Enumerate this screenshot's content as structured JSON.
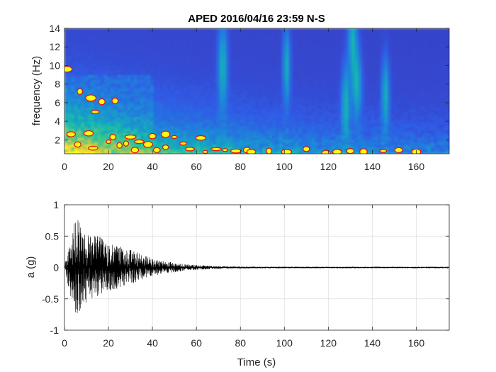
{
  "chart_data": [
    {
      "type": "heatmap",
      "title": "APED 2016/04/16 23:59 N-S",
      "xlabel": "",
      "ylabel": "frequency (Hz)",
      "xlim": [
        0,
        175
      ],
      "ylim": [
        0.5,
        14
      ],
      "xticks": [
        0,
        20,
        40,
        60,
        80,
        100,
        120,
        140,
        160
      ],
      "yticks": [
        2,
        4,
        6,
        8,
        10,
        12,
        14
      ],
      "colormap": [
        "#3e26a8",
        "#2f5ce6",
        "#1a8ed6",
        "#18b6b0",
        "#3ec98a",
        "#a0c84a",
        "#f5d12b",
        "#f9fb0e"
      ],
      "contour_color": "#e01010",
      "hot_spots": [
        {
          "t": 1,
          "f": 9.6
        },
        {
          "t": 3,
          "f": 2.6
        },
        {
          "t": 6,
          "f": 1.5
        },
        {
          "t": 7,
          "f": 7.2
        },
        {
          "t": 11,
          "f": 2.7
        },
        {
          "t": 12,
          "f": 6.5
        },
        {
          "t": 13,
          "f": 1.1
        },
        {
          "t": 14,
          "f": 5.0
        },
        {
          "t": 17,
          "f": 6.1
        },
        {
          "t": 20,
          "f": 1.8
        },
        {
          "t": 22,
          "f": 2.3
        },
        {
          "t": 23,
          "f": 6.2
        },
        {
          "t": 25,
          "f": 1.4
        },
        {
          "t": 28,
          "f": 1.6
        },
        {
          "t": 30,
          "f": 2.3
        },
        {
          "t": 32,
          "f": 0.9
        },
        {
          "t": 34,
          "f": 1.8
        },
        {
          "t": 38,
          "f": 1.5
        },
        {
          "t": 40,
          "f": 2.4
        },
        {
          "t": 42,
          "f": 0.9
        },
        {
          "t": 46,
          "f": 2.6
        },
        {
          "t": 46,
          "f": 1.2
        },
        {
          "t": 50,
          "f": 2.3
        },
        {
          "t": 54,
          "f": 1.6
        },
        {
          "t": 57,
          "f": 1.0
        },
        {
          "t": 62,
          "f": 2.2
        },
        {
          "t": 64,
          "f": 0.7
        },
        {
          "t": 69,
          "f": 1.0
        },
        {
          "t": 73,
          "f": 0.9
        },
        {
          "t": 78,
          "f": 0.8
        },
        {
          "t": 83,
          "f": 0.9
        },
        {
          "t": 85,
          "f": 0.7
        },
        {
          "t": 93,
          "f": 0.8
        },
        {
          "t": 101,
          "f": 0.7
        },
        {
          "t": 110,
          "f": 1.0
        },
        {
          "t": 119,
          "f": 0.6
        },
        {
          "t": 124,
          "f": 0.7
        },
        {
          "t": 130,
          "f": 0.8
        },
        {
          "t": 136,
          "f": 0.7
        },
        {
          "t": 145,
          "f": 0.8
        },
        {
          "t": 152,
          "f": 0.9
        },
        {
          "t": 160,
          "f": 0.7
        }
      ]
    },
    {
      "type": "line",
      "title": "",
      "xlabel": "Time (s)",
      "ylabel": "a (g)",
      "xlim": [
        0,
        175
      ],
      "ylim": [
        -1,
        1
      ],
      "xticks": [
        0,
        20,
        40,
        60,
        80,
        100,
        120,
        140,
        160
      ],
      "yticks": [
        -1,
        -0.5,
        0,
        0.5,
        1
      ],
      "grid": true,
      "line_color": "#000000",
      "envelope": {
        "t": [
          0,
          2,
          4,
          5,
          6,
          7,
          9,
          12,
          15,
          18,
          22,
          26,
          30,
          35,
          40,
          45,
          50,
          55,
          60,
          70,
          80,
          90,
          100,
          120,
          140,
          160,
          175
        ],
        "upper": [
          0.05,
          0.35,
          0.6,
          0.83,
          0.82,
          0.75,
          0.55,
          0.5,
          0.55,
          0.42,
          0.38,
          0.33,
          0.3,
          0.22,
          0.14,
          0.1,
          0.08,
          0.05,
          0.04,
          0.02,
          0.015,
          0.012,
          0.012,
          0.01,
          0.01,
          0.008,
          0.006
        ],
        "lower": [
          -0.05,
          -0.35,
          -0.62,
          -0.72,
          -0.78,
          -0.7,
          -0.6,
          -0.5,
          -0.48,
          -0.38,
          -0.38,
          -0.3,
          -0.28,
          -0.2,
          -0.14,
          -0.1,
          -0.08,
          -0.05,
          -0.04,
          -0.02,
          -0.015,
          -0.012,
          -0.012,
          -0.01,
          -0.01,
          -0.008,
          -0.006
        ]
      }
    }
  ]
}
